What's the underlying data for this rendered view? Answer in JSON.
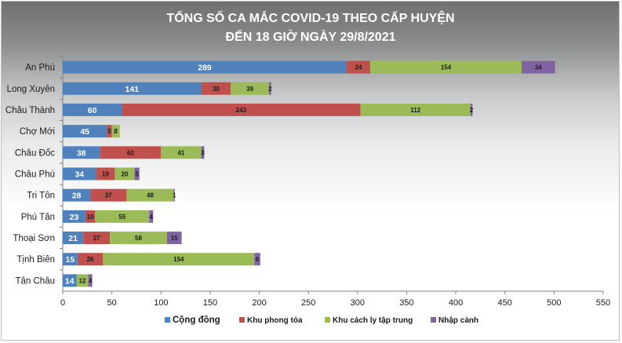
{
  "chart_data": {
    "type": "bar",
    "orientation": "horizontal",
    "stacked": true,
    "title_lines": [
      "TỔNG SỐ CA MẮC COVID-19 THEO CẤP HUYỆN",
      "ĐẾN 18 GIỜ NGÀY 29/8/2021"
    ],
    "categories": [
      "An Phú",
      "Long Xuyên",
      "Châu Thành",
      "Chợ Mới",
      "Châu Đốc",
      "Châu Phú",
      "Tri Tôn",
      "Phú Tân",
      "Thoại Sơn",
      "Tịnh Biên",
      "Tân Châu"
    ],
    "series": [
      {
        "name": "Cộng đồng",
        "color": "#4f81bd",
        "values": [
          289,
          141,
          60,
          45,
          38,
          34,
          28,
          23,
          21,
          15,
          14
        ]
      },
      {
        "name": "Khu phong tỏa",
        "color": "#c0504d",
        "values": [
          24,
          30,
          243,
          5,
          62,
          19,
          37,
          10,
          27,
          26,
          0
        ]
      },
      {
        "name": "Khu cách ly tập trung",
        "color": "#9bbb59",
        "values": [
          154,
          39,
          112,
          8,
          41,
          20,
          48,
          55,
          58,
          154,
          12
        ]
      },
      {
        "name": "Nhập cảnh",
        "color": "#8064a2",
        "values": [
          34,
          2,
          2,
          0,
          3,
          5,
          1,
          4,
          15,
          6,
          4
        ]
      }
    ],
    "xlim": [
      0,
      550
    ],
    "xticks": [
      0,
      50,
      100,
      150,
      200,
      250,
      300,
      350,
      400,
      450,
      500,
      550
    ],
    "grid": false,
    "legend": "bottom"
  }
}
